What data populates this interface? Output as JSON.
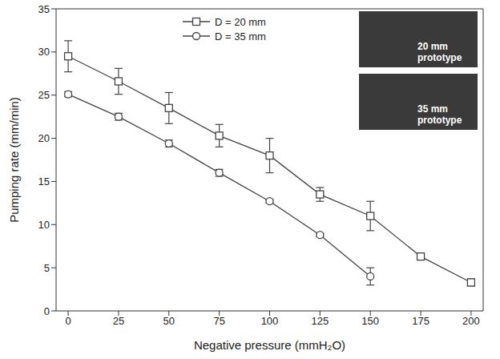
{
  "chart_data": {
    "type": "line",
    "x_label": "Negative pressure (mmH₂O)",
    "y_label": "Pumping rate (mm/min)",
    "x": [
      0,
      25,
      50,
      75,
      100,
      125,
      150,
      175,
      200
    ],
    "series": [
      {
        "name": "D = 20 mm",
        "color": "#444444",
        "marker": "square",
        "values": [
          29.5,
          26.6,
          23.5,
          20.3,
          18.0,
          13.5,
          11.0,
          6.3,
          3.3
        ],
        "errors": [
          1.8,
          1.5,
          1.8,
          1.3,
          2.0,
          0.8,
          1.7,
          0.3,
          0.4
        ]
      },
      {
        "name": "D = 35 mm",
        "color": "#444444",
        "marker": "circle",
        "values": [
          25.1,
          22.5,
          19.4,
          16.0,
          12.7,
          8.8,
          4.0,
          null,
          null
        ],
        "errors": [
          0.3,
          0.4,
          0.4,
          0.4,
          0.2,
          0.2,
          1.0,
          null,
          null
        ]
      }
    ],
    "xlim": [
      -6,
      206
    ],
    "xticks": [
      0,
      25,
      50,
      75,
      100,
      125,
      150,
      175,
      200
    ],
    "ylim": [
      0,
      35
    ],
    "yticks": [
      0,
      5,
      10,
      15,
      20,
      25,
      30,
      35
    ],
    "grid": false,
    "legend": "top",
    "annotations": [
      "20 mm prototype",
      "35 mm prototype"
    ]
  }
}
